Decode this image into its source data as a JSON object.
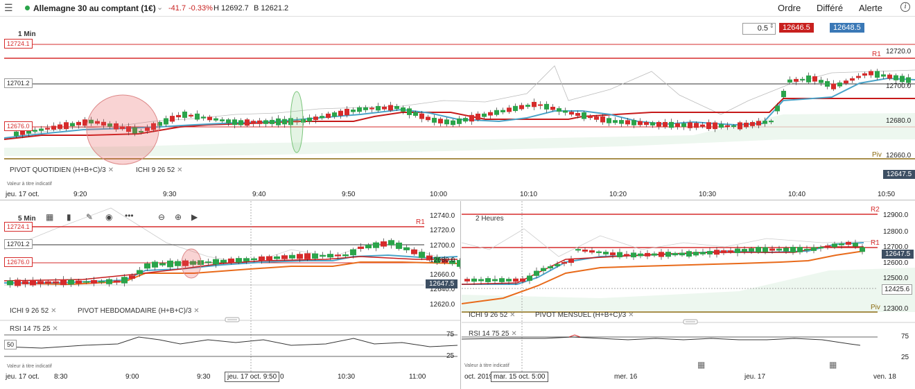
{
  "header": {
    "instrument": "Allemagne 30 au comptant (1€)",
    "change": "-41.7",
    "change_pct": "-0.33%",
    "high": "H 12692.7",
    "low": "B 12621.2",
    "actions": [
      "Ordre",
      "Différé",
      "Alerte"
    ],
    "info_label": "i",
    "menu_icon": "hamburger-icon"
  },
  "trade": {
    "quantity": "0.5",
    "sell": "12646.5",
    "buy": "12648.5",
    "sell_color": "#c8201e",
    "buy_color": "#3a78b6"
  },
  "colors": {
    "up": "#2aa44a",
    "down": "#d62b2b",
    "pivot": "#d62b2b",
    "kijun": "#c61a1a",
    "tenkan": "#4aa3c8",
    "weekly_kijun": "#e86a1a"
  },
  "top_chart": {
    "timeframe": "1 Min",
    "left_tags": [
      "12724.1",
      "12701.2",
      "12676.0"
    ],
    "right_labels": {
      "r1": "R1",
      "piv": "Piv"
    },
    "price_axis": [
      "12720.0",
      "12700.0",
      "12680.0",
      "12660.0"
    ],
    "current_price": "12647.5",
    "indicators": [
      "PIVOT  QUOTIDIEN  (H+B+C)/3",
      "ICHI  9  26  52"
    ],
    "note": "Valeur à titre indicatif",
    "time_axis": [
      "jeu. 17 oct.",
      "9:20",
      "9:30",
      "9:40",
      "9:50",
      "10:00",
      "10:10",
      "10:20",
      "10:30",
      "10:40",
      "10:50"
    ],
    "chart_data": {
      "type": "candlestick",
      "x": [
        "9:20",
        "9:30",
        "9:40",
        "9:50",
        "10:00",
        "10:10",
        "10:20",
        "10:30",
        "10:40",
        "10:50"
      ],
      "ylim": [
        12660,
        12725
      ],
      "levels": {
        "R1": 12720.0,
        "Piv": 12660.0,
        "12724.1": 12724.1,
        "12701.2": 12701.2,
        "12676.0": 12676.0
      }
    }
  },
  "left_chart": {
    "timeframe": "5 Min",
    "left_tags": [
      "12724.1",
      "12701.2",
      "12676.0"
    ],
    "right_labels": {
      "r1": "R1"
    },
    "price_axis": [
      "12740.0",
      "12720.0",
      "12700.0",
      "12680.0",
      "12660.0",
      "12640.0",
      "12620.0"
    ],
    "current_price": "12647.5",
    "indicators": [
      "ICHI  9  26  52",
      "PIVOT  HEBDOMADAIRE  (H+B+C)/3"
    ],
    "rsi": {
      "label": "RSI  14  75  25",
      "left_tag": "50",
      "levels": [
        "75",
        "25"
      ]
    },
    "note": "Valeur à titre indicatif",
    "time_axis": [
      "jeu. 17 oct.",
      "8:30",
      "9:00",
      "9:30",
      "10:30",
      "11:00"
    ],
    "crosshair_label": "jeu. 17 oct. 9:50",
    "crosshair_suffix": "0"
  },
  "right_chart": {
    "timeframe": "2 Heures",
    "right_labels": {
      "r2": "R2",
      "r1": "R1",
      "piv": "Piv"
    },
    "price_axis": [
      "12900.0",
      "12800.0",
      "12700.0",
      "12600.0",
      "12500.0",
      "12300.0"
    ],
    "current_price": "12647.5",
    "crosshair_price": "12425.6",
    "indicators": [
      "ICHI  9  26  52",
      "PIVOT  MENSUEL  (H+B+C)/3"
    ],
    "rsi": {
      "label": "RSI  14  75  25",
      "levels": [
        "75",
        "25"
      ]
    },
    "note": "Valeur à titre indicatif",
    "time_axis": [
      "oct. 2019",
      "mer. 16",
      "jeu. 17",
      "ven. 18"
    ],
    "crosshair_label": "mar. 15 oct. 5:00"
  }
}
